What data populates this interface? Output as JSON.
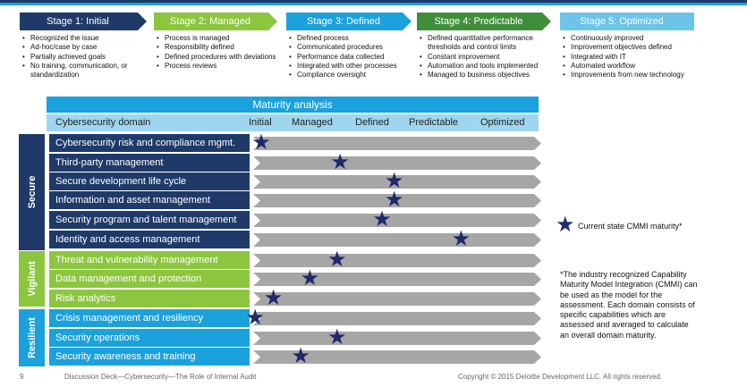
{
  "colors": {
    "stage1": "#1f3a68",
    "stage2": "#8cc63e",
    "stage3": "#1ba1dc",
    "stage4": "#3f8f3a",
    "stage5": "#6cc4e8",
    "secure": "#1f3a68",
    "vigilant": "#8cc63e",
    "resilient": "#1ba1dc",
    "bar": "#a6a6a6",
    "star": "#1f2a6b"
  },
  "stages": [
    {
      "title": "Stage 1: Initial",
      "color": "#1f3a68",
      "items": [
        "Recognized the issue",
        "Ad-hoc/case by case",
        "Partially achieved goals",
        "No training, communication, or standardization"
      ]
    },
    {
      "title": "Stage 2: Managed",
      "color": "#8cc63e",
      "items": [
        "Process is managed",
        "Responsibility defined",
        "Defined procedures with deviations",
        "Process reviews"
      ]
    },
    {
      "title": "Stage 3: Defined",
      "color": "#1ba1dc",
      "items": [
        "Defined process",
        "Communicated procedures",
        "Performance data collected",
        "Integrated with other processes",
        "Compliance oversight"
      ]
    },
    {
      "title": "Stage 4: Predictable",
      "color": "#3f8f3a",
      "items": [
        "Defined quantitative performance thresholds and control limits",
        "Constant improvement",
        "Automation and tools implemented",
        "Managed to business objectives"
      ]
    },
    {
      "title": "Stage 5: Optimized",
      "color": "#6cc4e8",
      "items": [
        "Continuously improved",
        "Improvement objectives defined",
        "Integrated with IT",
        "Automated workflow",
        "Improvements from new technology"
      ]
    }
  ],
  "matrix": {
    "title": "Maturity analysis",
    "domain_header": "Cybersecurity domain",
    "levels": [
      "Initial",
      "Managed",
      "Defined",
      "Predictable",
      "Optimized"
    ]
  },
  "categories": [
    {
      "name": "Secure",
      "color": "#1f3a68"
    },
    {
      "name": "Vigilant",
      "color": "#8cc63e"
    },
    {
      "name": "Resilient",
      "color": "#1ba1dc"
    }
  ],
  "domains": [
    {
      "name": "Cybersecurity risk and compliance mgmt.",
      "category": "Secure",
      "maturity": 0.0
    },
    {
      "name": "Third-party management",
      "category": "Secure",
      "maturity": 1.3
    },
    {
      "name": "Secure development life cycle",
      "category": "Secure",
      "maturity": 2.2
    },
    {
      "name": "Information and asset management",
      "category": "Secure",
      "maturity": 2.2
    },
    {
      "name": "Security program and talent management",
      "category": "Secure",
      "maturity": 2.0
    },
    {
      "name": "Identity and access management",
      "category": "Secure",
      "maturity": 3.3
    },
    {
      "name": "Threat and vulnerability management",
      "category": "Vigilant",
      "maturity": 1.25
    },
    {
      "name": "Data management and protection",
      "category": "Vigilant",
      "maturity": 0.8
    },
    {
      "name": "Risk analytics",
      "category": "Vigilant",
      "maturity": 0.2
    },
    {
      "name": "Crisis management and resiliency",
      "category": "Resilient",
      "maturity": -0.1
    },
    {
      "name": "Security operations",
      "category": "Resilient",
      "maturity": 1.25
    },
    {
      "name": "Security awareness and training",
      "category": "Resilient",
      "maturity": 0.65
    }
  ],
  "legend": {
    "star_icon": "star-icon",
    "label": "Current state CMMI maturity*"
  },
  "footnote": "*The industry recognized Capability Maturity Model Integration (CMMI) can be used as the model for the assessment. Each domain consists of specific capabilities which are assessed and averaged to calculate an overall domain maturity.",
  "footer": {
    "page": "9",
    "deck": "Discussion Deck—Cybersecurity—The Role of Internal Audit",
    "copyright": "Copyright © 2015 Deloitte Development LLC. All rights reserved."
  }
}
